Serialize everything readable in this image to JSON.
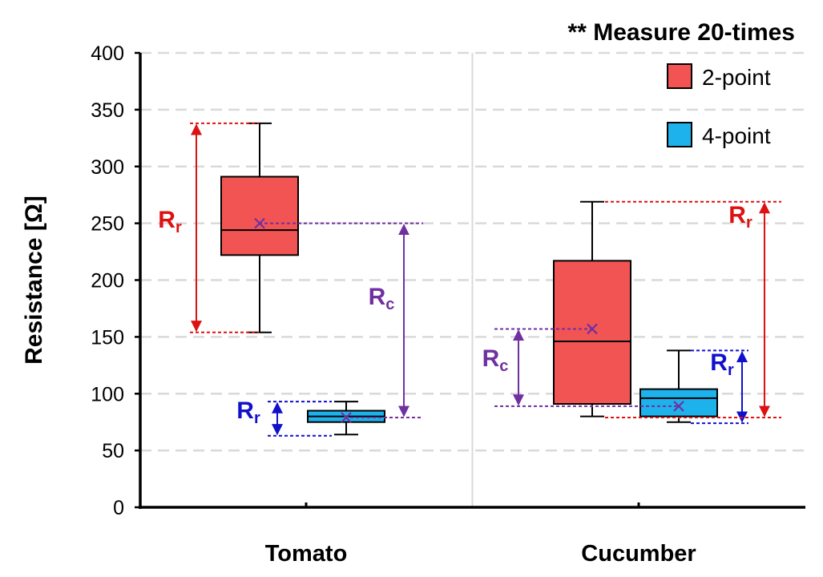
{
  "chart_data": {
    "type": "box",
    "note": "** Measure 20-times",
    "ylabel": "Resistance [Ω]",
    "ylim": [
      0,
      400
    ],
    "yticks": [
      0,
      50,
      100,
      150,
      200,
      250,
      300,
      350,
      400
    ],
    "grid": "horizontal-dashed",
    "legend_position": "top-right",
    "categories": [
      "Tomato",
      "Cucumber"
    ],
    "series": [
      {
        "name": "2-point",
        "color": "#f25454",
        "boxes": [
          {
            "category": "Tomato",
            "min": 154,
            "q1": 222,
            "median": 244,
            "q3": 291,
            "max": 338,
            "mean": 250
          },
          {
            "category": "Cucumber",
            "min": 80,
            "q1": 91,
            "median": 146,
            "q3": 217,
            "max": 269,
            "mean": 157
          }
        ]
      },
      {
        "name": "4-point",
        "color": "#1eb2ec",
        "boxes": [
          {
            "category": "Tomato",
            "min": 64,
            "q1": 75,
            "median": 80,
            "q3": 85,
            "max": 93,
            "mean": 79
          },
          {
            "category": "Cucumber",
            "min": 75,
            "q1": 80,
            "median": 96,
            "q3": 104,
            "max": 138,
            "mean": 89
          }
        ]
      }
    ],
    "annotations": [
      {
        "label": "R",
        "sub": "r",
        "color": "#dd1111",
        "category": "Tomato",
        "from": 154,
        "to": 338
      },
      {
        "label": "R",
        "sub": "c",
        "color": "#7030a0",
        "category": "Tomato",
        "from": 79,
        "to": 250
      },
      {
        "label": "R",
        "sub": "r",
        "color": "#1111cc",
        "category": "Tomato",
        "from": 63,
        "to": 93
      },
      {
        "label": "R",
        "sub": "c",
        "color": "#7030a0",
        "category": "Cucumber",
        "from": 89,
        "to": 157
      },
      {
        "label": "R",
        "sub": "r",
        "color": "#1111cc",
        "category": "Cucumber",
        "from": 74,
        "to": 138
      },
      {
        "label": "R",
        "sub": "r",
        "color": "#dd1111",
        "category": "Cucumber",
        "from": 79,
        "to": 269
      }
    ]
  }
}
